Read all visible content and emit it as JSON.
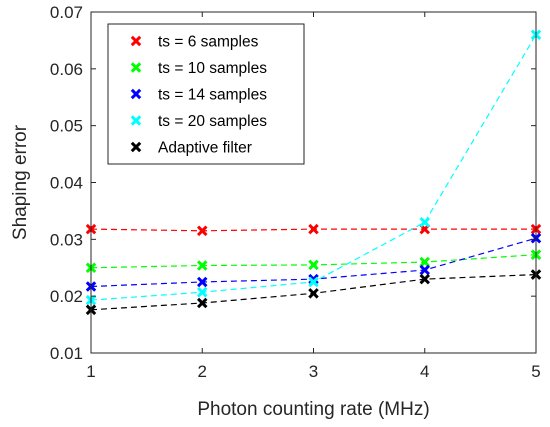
{
  "chart_data": {
    "type": "line",
    "xlabel": "Photon counting rate (MHz)",
    "ylabel": "Shaping error",
    "xlim": [
      1,
      5
    ],
    "ylim": [
      0.01,
      0.07
    ],
    "xticks": [
      "1",
      "2",
      "3",
      "4",
      "5"
    ],
    "yticks": [
      "0.01",
      "0.02",
      "0.03",
      "0.04",
      "0.05",
      "0.06",
      "0.07"
    ],
    "grid": false,
    "legend_position": "top-left",
    "x": [
      1,
      2,
      3,
      4,
      5
    ],
    "series": [
      {
        "name": "ts = 6 samples",
        "color": "#ff0000",
        "values": [
          0.0318,
          0.0315,
          0.0318,
          0.0318,
          0.0318
        ]
      },
      {
        "name": "ts = 10 samples",
        "color": "#00ff00",
        "values": [
          0.025,
          0.0254,
          0.0255,
          0.026,
          0.0273
        ]
      },
      {
        "name": "ts = 14 samples",
        "color": "#0000ff",
        "values": [
          0.0217,
          0.0225,
          0.023,
          0.0246,
          0.0302
        ]
      },
      {
        "name": "ts = 20 samples",
        "color": "#00ffff",
        "values": [
          0.0193,
          0.0207,
          0.0225,
          0.033,
          0.066
        ]
      },
      {
        "name": "Adaptive filter",
        "color": "#000000",
        "values": [
          0.0176,
          0.0188,
          0.0205,
          0.023,
          0.0238
        ]
      }
    ]
  }
}
